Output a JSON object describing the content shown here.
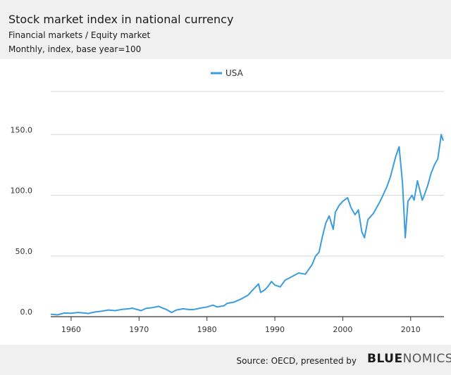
{
  "header": {
    "title": "Stock market index in national currency",
    "subtitle": "Financial markets / Equity market",
    "subtitle2": "Monthly, index, base year=100"
  },
  "footer": {
    "source": "Source: OECD, presented by",
    "brand_part1": "BLUE",
    "brand_part2": "NOMICS"
  },
  "colors": {
    "series": "#3b9ddd",
    "grid": "#d8d8d8",
    "axis": "#333333",
    "header_bg": "#f0f0f0"
  },
  "chart_data": {
    "type": "line",
    "title": "Stock market index in national currency",
    "xlabel": "",
    "ylabel": "",
    "xlim": [
      1957,
      2014.9
    ],
    "ylim": [
      -4,
      189
    ],
    "xticks": [
      1960,
      1970,
      1980,
      1990,
      2000,
      2010
    ],
    "yticks": [
      0,
      50,
      100,
      150
    ],
    "ytick_labels": [
      "0.0",
      "50.0",
      "100.0",
      "150.0"
    ],
    "legend_position": "top-center",
    "grid": true,
    "series": [
      {
        "name": "USA",
        "x": [
          1957.0,
          1958.0,
          1959.0,
          1960.0,
          1961.0,
          1962.0,
          1962.5,
          1963.5,
          1964.5,
          1965.5,
          1966.5,
          1967.5,
          1968.5,
          1969.0,
          1970.3,
          1971.0,
          1972.0,
          1972.9,
          1973.5,
          1974.0,
          1974.8,
          1975.5,
          1976.5,
          1977.5,
          1978.2,
          1979.0,
          1980.0,
          1980.9,
          1981.5,
          1982.5,
          1983.0,
          1984.0,
          1985.0,
          1986.0,
          1987.0,
          1987.6,
          1987.9,
          1988.5,
          1989.0,
          1989.5,
          1990.0,
          1990.8,
          1991.5,
          1992.5,
          1993.5,
          1994.5,
          1995.5,
          1996.0,
          1996.5,
          1997.0,
          1997.5,
          1998.0,
          1998.6,
          1998.9,
          1999.5,
          2000.0,
          2000.7,
          2001.2,
          2001.8,
          2002.3,
          2002.8,
          2003.2,
          2003.7,
          2004.5,
          2005.5,
          2006.5,
          2007.0,
          2007.8,
          2008.3,
          2008.8,
          2009.2,
          2009.6,
          2010.2,
          2010.5,
          2011.0,
          2011.7,
          2012.0,
          2012.5,
          2013.0,
          2013.5,
          2014.0,
          2014.5,
          2014.8
        ],
        "y": [
          2,
          1.5,
          3,
          2.8,
          3.5,
          3.0,
          2.6,
          3.8,
          4.5,
          5.5,
          5.0,
          6.0,
          6.5,
          7.0,
          5.0,
          6.8,
          7.5,
          8.5,
          7.0,
          6.0,
          3.5,
          5.5,
          6.5,
          5.8,
          6.0,
          7.0,
          8.0,
          9.5,
          8.0,
          9.0,
          11.0,
          12.0,
          14.5,
          17.5,
          23.5,
          27.0,
          20.0,
          22.0,
          25.0,
          29.0,
          26.0,
          24.5,
          30.0,
          33.0,
          36.0,
          35.0,
          43.0,
          50.0,
          53.0,
          66.0,
          77.0,
          83.0,
          72.0,
          86.0,
          92.0,
          95.0,
          98.0,
          90.0,
          84.0,
          88.0,
          70.0,
          65.0,
          80.0,
          85.0,
          95.0,
          107.0,
          115.0,
          132.0,
          140.0,
          110.0,
          65.0,
          95.0,
          100.0,
          96.0,
          112.0,
          96.0,
          100.0,
          108.0,
          118.0,
          125.0,
          130.0,
          150.0,
          145.0
        ]
      }
    ]
  }
}
